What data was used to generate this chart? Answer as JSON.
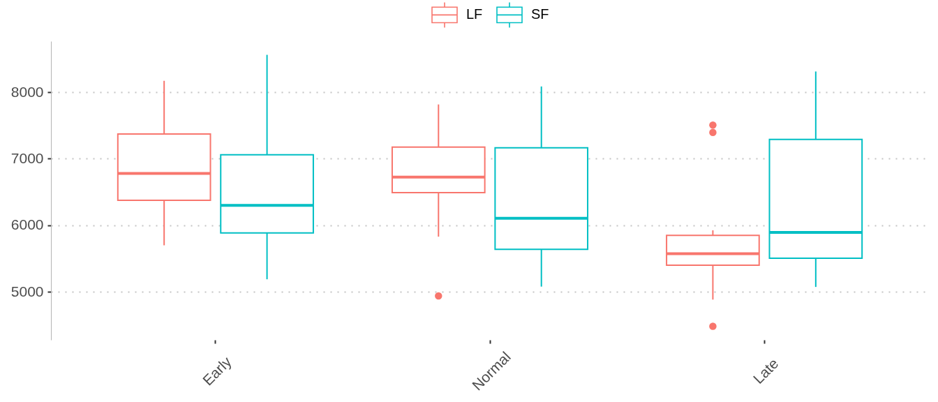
{
  "chart_data": {
    "type": "box",
    "categories": [
      "Early",
      "Normal",
      "Late"
    ],
    "series": [
      {
        "name": "LF",
        "color": "#f8766d",
        "boxes": [
          {
            "low": 5700,
            "q1": 6375,
            "median": 6780,
            "q3": 7370,
            "high": 8170
          },
          {
            "low": 5830,
            "q1": 6490,
            "median": 6725,
            "q3": 7175,
            "high": 7815,
            "outliers": [
              4940
            ]
          },
          {
            "low": 4885,
            "q1": 5400,
            "median": 5575,
            "q3": 5850,
            "high": 5925,
            "outliers": [
              7505,
              7395,
              4485
            ]
          }
        ]
      },
      {
        "name": "SF",
        "color": "#00bfc4",
        "boxes": [
          {
            "low": 5190,
            "q1": 5885,
            "median": 6300,
            "q3": 7060,
            "high": 8560
          },
          {
            "low": 5080,
            "q1": 5640,
            "median": 6105,
            "q3": 7165,
            "high": 8085
          },
          {
            "low": 5075,
            "q1": 5505,
            "median": 5895,
            "q3": 7290,
            "high": 8310
          }
        ]
      }
    ],
    "ylim": [
      4280,
      8765
    ],
    "yticks": [
      5000,
      6000,
      7000,
      8000
    ],
    "grid": "y",
    "legend": "top"
  }
}
